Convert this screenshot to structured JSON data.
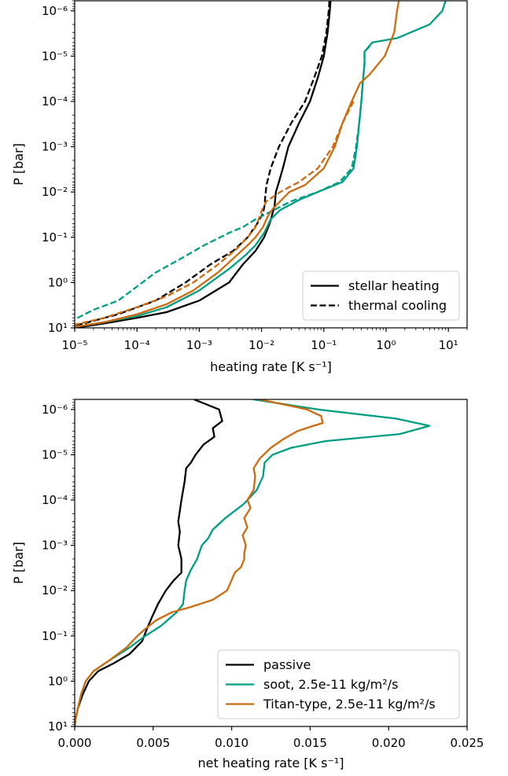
{
  "chart_data": [
    {
      "type": "line",
      "xlabel": "heating rate [K s⁻¹]",
      "ylabel": "P [bar]",
      "xscale": "log",
      "yscale": "log",
      "yinverted": true,
      "xlim": [
        1e-05,
        20
      ],
      "ylim": [
        10,
        6e-07
      ],
      "xticks": [
        "10⁻⁵",
        "10⁻⁴",
        "10⁻³",
        "10⁻²",
        "10⁻¹",
        "10⁰",
        "10¹"
      ],
      "yticks": [
        "10⁻⁶",
        "10⁻⁵",
        "10⁻⁴",
        "10⁻³",
        "10⁻²",
        "10⁻¹",
        "10⁰",
        "10¹"
      ],
      "legend": {
        "position": "lower-right",
        "entries": [
          {
            "label": "stellar heating",
            "style": "solid"
          },
          {
            "label": "thermal cooling",
            "style": "dashed"
          }
        ]
      },
      "series": [
        {
          "color": "#000000",
          "style": "solid",
          "points": [
            [
              0.128,
              6e-07
            ],
            [
              0.125,
              1e-06
            ],
            [
              0.115,
              3e-06
            ],
            [
              0.1,
              1e-05
            ],
            [
              0.08,
              3e-05
            ],
            [
              0.06,
              0.0001
            ],
            [
              0.04,
              0.0003
            ],
            [
              0.027,
              0.001
            ],
            [
              0.022,
              0.003
            ],
            [
              0.019,
              0.006
            ],
            [
              0.017,
              0.01
            ],
            [
              0.0162,
              0.02
            ],
            [
              0.015,
              0.03
            ],
            [
              0.0135,
              0.05
            ],
            [
              0.011,
              0.1
            ],
            [
              0.008,
              0.2
            ],
            [
              0.005,
              0.4
            ],
            [
              0.003,
              1
            ],
            [
              0.001,
              2.5
            ],
            [
              0.0003,
              4.5
            ],
            [
              0.0001,
              6
            ],
            [
              3e-05,
              8
            ],
            [
              1e-05,
              10
            ]
          ]
        },
        {
          "color": "#000000",
          "style": "dashed",
          "points": [
            [
              0.123,
              6e-07
            ],
            [
              0.12,
              1e-06
            ],
            [
              0.11,
              3e-06
            ],
            [
              0.093,
              1e-05
            ],
            [
              0.07,
              3e-05
            ],
            [
              0.05,
              0.0001
            ],
            [
              0.03,
              0.0003
            ],
            [
              0.019,
              0.001
            ],
            [
              0.014,
              0.003
            ],
            [
              0.012,
              0.007
            ],
            [
              0.0115,
              0.012
            ],
            [
              0.0112,
              0.02
            ],
            [
              0.0105,
              0.03
            ],
            [
              0.0085,
              0.05
            ],
            [
              0.006,
              0.1
            ],
            [
              0.0035,
              0.2
            ],
            [
              0.0015,
              0.4
            ],
            [
              0.0006,
              1
            ],
            [
              0.0002,
              2.5
            ],
            [
              5e-05,
              5
            ],
            [
              2e-05,
              7
            ],
            [
              1e-05,
              9
            ]
          ]
        },
        {
          "color": "#009E84",
          "style": "solid",
          "points": [
            [
              9.0,
              6e-07
            ],
            [
              8.0,
              1e-06
            ],
            [
              5.0,
              2e-06
            ],
            [
              1.5,
              4e-06
            ],
            [
              0.6,
              5e-06
            ],
            [
              0.45,
              8e-06
            ],
            [
              0.45,
              1.5e-05
            ],
            [
              0.43,
              3e-05
            ],
            [
              0.4,
              0.0001
            ],
            [
              0.37,
              0.0003
            ],
            [
              0.34,
              0.001
            ],
            [
              0.3,
              0.003
            ],
            [
              0.2,
              0.006
            ],
            [
              0.08,
              0.01
            ],
            [
              0.04,
              0.015
            ],
            [
              0.02,
              0.025
            ],
            [
              0.014,
              0.04
            ],
            [
              0.011,
              0.08
            ],
            [
              0.008,
              0.15
            ],
            [
              0.0055,
              0.25
            ],
            [
              0.003,
              0.5
            ],
            [
              0.001,
              1.5
            ],
            [
              0.0003,
              3.5
            ],
            [
              0.0001,
              5.5
            ],
            [
              3e-05,
              7.5
            ],
            [
              1e-05,
              9.5
            ]
          ]
        },
        {
          "color": "#009E84",
          "style": "dashed",
          "points": [
            [
              0.55,
              6e-06
            ],
            [
              0.45,
              8e-06
            ],
            [
              0.45,
              1.5e-05
            ],
            [
              0.42,
              4e-05
            ],
            [
              0.4,
              0.0001
            ],
            [
              0.37,
              0.0003
            ],
            [
              0.33,
              0.001
            ],
            [
              0.28,
              0.003
            ],
            [
              0.18,
              0.006
            ],
            [
              0.08,
              0.01
            ],
            [
              0.03,
              0.016
            ],
            [
              0.015,
              0.026
            ],
            [
              0.008,
              0.04
            ],
            [
              0.005,
              0.06
            ],
            [
              0.003,
              0.08
            ],
            [
              0.0012,
              0.15
            ],
            [
              0.0005,
              0.3
            ],
            [
              0.0002,
              0.6
            ],
            [
              5e-05,
              2.5
            ],
            [
              2e-05,
              4
            ],
            [
              1e-05,
              6.5
            ]
          ]
        },
        {
          "color": "#CC6B0F",
          "style": "solid",
          "points": [
            [
              1.6,
              6e-07
            ],
            [
              1.5,
              1e-06
            ],
            [
              1.35,
              3e-06
            ],
            [
              0.95,
              1e-05
            ],
            [
              0.55,
              2.5e-05
            ],
            [
              0.38,
              4e-05
            ],
            [
              0.28,
              0.0001
            ],
            [
              0.2,
              0.0003
            ],
            [
              0.15,
              0.001
            ],
            [
              0.1,
              0.003
            ],
            [
              0.05,
              0.007
            ],
            [
              0.028,
              0.01
            ],
            [
              0.02,
              0.016
            ],
            [
              0.015,
              0.024
            ],
            [
              0.0125,
              0.035
            ],
            [
              0.0105,
              0.06
            ],
            [
              0.008,
              0.1
            ],
            [
              0.006,
              0.15
            ],
            [
              0.004,
              0.25
            ],
            [
              0.002,
              0.6
            ],
            [
              0.0008,
              1.5
            ],
            [
              0.0003,
              3
            ],
            [
              0.0001,
              5
            ],
            [
              3e-05,
              7.5
            ],
            [
              1e-05,
              9.5
            ]
          ]
        },
        {
          "color": "#CC6B0F",
          "style": "dashed",
          "points": [
            [
              0.3,
              0.0001
            ],
            [
              0.2,
              0.0003
            ],
            [
              0.14,
              0.001
            ],
            [
              0.08,
              0.003
            ],
            [
              0.04,
              0.006
            ],
            [
              0.02,
              0.01
            ],
            [
              0.012,
              0.016
            ],
            [
              0.01,
              0.026
            ],
            [
              0.009,
              0.04
            ],
            [
              0.008,
              0.06
            ],
            [
              0.006,
              0.1
            ],
            [
              0.004,
              0.18
            ],
            [
              0.002,
              0.4
            ],
            [
              0.0008,
              1
            ],
            [
              0.0003,
              2
            ],
            [
              0.0001,
              3.5
            ],
            [
              3e-05,
              6
            ],
            [
              1e-05,
              8.5
            ]
          ]
        }
      ]
    },
    {
      "type": "line",
      "xlabel": "net heating rate [K s⁻¹]",
      "ylabel": "P [bar]",
      "xscale": "linear",
      "yscale": "log",
      "yinverted": true,
      "xlim": [
        0,
        0.025
      ],
      "ylim": [
        10,
        6e-07
      ],
      "xticks": [
        "0.000",
        "0.005",
        "0.010",
        "0.015",
        "0.020",
        "0.025"
      ],
      "xtick_values": [
        0,
        0.005,
        0.01,
        0.015,
        0.02,
        0.025
      ],
      "yticks": [
        "10⁻⁶",
        "10⁻⁵",
        "10⁻⁴",
        "10⁻³",
        "10⁻²",
        "10⁻¹",
        "10⁰",
        "10¹"
      ],
      "legend": {
        "position": "lower-right",
        "entries": [
          {
            "label": "passive",
            "color": "#000000"
          },
          {
            "label": "soot, 2.5e-11 kg/m²/s",
            "color": "#009E84"
          },
          {
            "label": "Titan-type, 2.5e-11 kg/m²/s",
            "color": "#CC6B0F"
          }
        ]
      },
      "series": [
        {
          "name": "passive",
          "color": "#000000",
          "points": [
            [
              0.0076,
              6e-07
            ],
            [
              0.0092,
              1e-06
            ],
            [
              0.0094,
              1.8e-06
            ],
            [
              0.0088,
              2.6e-06
            ],
            [
              0.0089,
              4e-06
            ],
            [
              0.0082,
              6e-06
            ],
            [
              0.0077,
              1e-05
            ],
            [
              0.0074,
              1.5e-05
            ],
            [
              0.0071,
              2e-05
            ],
            [
              0.007,
              4e-05
            ],
            [
              0.0068,
              0.0001
            ],
            [
              0.0066,
              0.0003
            ],
            [
              0.0067,
              0.0005
            ],
            [
              0.0066,
              0.001
            ],
            [
              0.0068,
              0.002
            ],
            [
              0.0068,
              0.004
            ],
            [
              0.0063,
              0.006
            ],
            [
              0.0058,
              0.01
            ],
            [
              0.0053,
              0.02
            ],
            [
              0.0049,
              0.04
            ],
            [
              0.0046,
              0.07
            ],
            [
              0.0043,
              0.13
            ],
            [
              0.0035,
              0.25
            ],
            [
              0.0025,
              0.4
            ],
            [
              0.0015,
              0.6
            ],
            [
              0.0009,
              1
            ],
            [
              0.0005,
              2
            ],
            [
              0.0002,
              4
            ],
            [
              5e-05,
              7
            ],
            [
              0,
              10
            ]
          ]
        },
        {
          "name": "soot, 2.5e-11 kg/m²/s",
          "color": "#009E84",
          "points": [
            [
              0.0114,
              6e-07
            ],
            [
              0.0155,
              1e-06
            ],
            [
              0.0205,
              1.6e-06
            ],
            [
              0.0226,
              2.3e-06
            ],
            [
              0.0207,
              3.5e-06
            ],
            [
              0.016,
              5e-06
            ],
            [
              0.0138,
              7e-06
            ],
            [
              0.0126,
              1e-05
            ],
            [
              0.0121,
              1.5e-05
            ],
            [
              0.012,
              3e-05
            ],
            [
              0.0116,
              6e-05
            ],
            [
              0.0108,
              0.00012
            ],
            [
              0.0096,
              0.00025
            ],
            [
              0.0088,
              0.00045
            ],
            [
              0.0085,
              0.0007
            ],
            [
              0.0081,
              0.001
            ],
            [
              0.0078,
              0.002
            ],
            [
              0.0074,
              0.0035
            ],
            [
              0.0071,
              0.006
            ],
            [
              0.007,
              0.01
            ],
            [
              0.0069,
              0.02
            ],
            [
              0.0065,
              0.03
            ],
            [
              0.0055,
              0.06
            ],
            [
              0.0045,
              0.1
            ],
            [
              0.0035,
              0.18
            ],
            [
              0.0022,
              0.35
            ],
            [
              0.0012,
              0.6
            ],
            [
              0.0007,
              1
            ],
            [
              0.0004,
              2
            ],
            [
              0.0002,
              4
            ],
            [
              5e-05,
              7
            ],
            [
              0,
              10
            ]
          ]
        },
        {
          "name": "Titan-type, 2.5e-11 kg/m²/s",
          "color": "#CC6B0F",
          "points": [
            [
              0.0118,
              6e-07
            ],
            [
              0.0148,
              1e-06
            ],
            [
              0.0157,
              1.4e-06
            ],
            [
              0.0158,
              2e-06
            ],
            [
              0.0152,
              2.3e-06
            ],
            [
              0.0142,
              3e-06
            ],
            [
              0.0133,
              4.5e-06
            ],
            [
              0.0125,
              7e-06
            ],
            [
              0.0118,
              1.2e-05
            ],
            [
              0.0114,
              2e-05
            ],
            [
              0.0115,
              3e-05
            ],
            [
              0.0114,
              6e-05
            ],
            [
              0.011,
              0.0001
            ],
            [
              0.0112,
              0.00015
            ],
            [
              0.0108,
              0.00025
            ],
            [
              0.011,
              0.0004
            ],
            [
              0.0107,
              0.0006
            ],
            [
              0.0109,
              0.001
            ],
            [
              0.0108,
              0.0015
            ],
            [
              0.0108,
              0.002
            ],
            [
              0.0106,
              0.003
            ],
            [
              0.0102,
              0.004
            ],
            [
              0.0099,
              0.007
            ],
            [
              0.0097,
              0.01
            ],
            [
              0.0088,
              0.016
            ],
            [
              0.0074,
              0.023
            ],
            [
              0.0062,
              0.03
            ],
            [
              0.0052,
              0.045
            ],
            [
              0.0045,
              0.07
            ],
            [
              0.004,
              0.1
            ],
            [
              0.0033,
              0.18
            ],
            [
              0.0022,
              0.35
            ],
            [
              0.0012,
              0.6
            ],
            [
              0.0007,
              1
            ],
            [
              0.0004,
              2
            ],
            [
              0.0002,
              4
            ],
            [
              5e-05,
              7
            ],
            [
              0,
              10
            ]
          ]
        }
      ]
    }
  ]
}
